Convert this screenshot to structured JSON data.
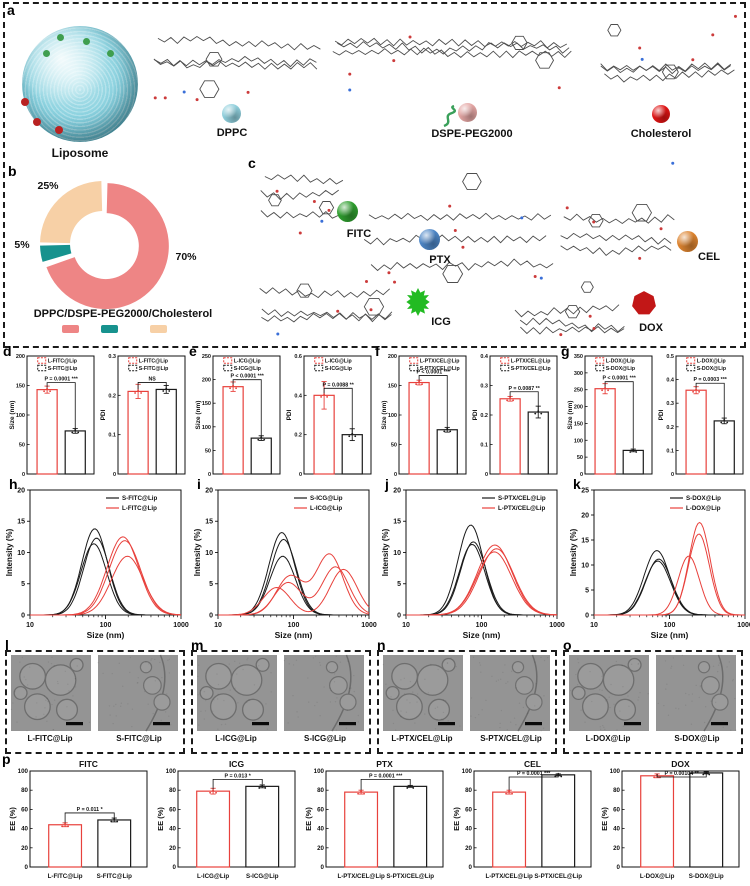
{
  "letters": {
    "a": "a",
    "b": "b",
    "c": "c",
    "d": "d",
    "e": "e",
    "f": "f",
    "g": "g",
    "h": "h",
    "i": "i",
    "j": "j",
    "k": "k",
    "l": "l",
    "m": "m",
    "n": "n",
    "o": "o",
    "p": "p"
  },
  "panel_a": {
    "liposome_label": "Liposome",
    "components": [
      {
        "name": "DPPC",
        "color": "#8fcfdc"
      },
      {
        "name": "DSPE-PEG2000",
        "color": "#e4a6a4"
      },
      {
        "name": "Cholesterol",
        "color": "#e01414"
      }
    ]
  },
  "panel_b": {
    "title": "DPPC/DSPE-PEG2000/Cholesterol"
  },
  "panel_c": {
    "drugs": [
      {
        "name": "FITC",
        "color": "#2f9e2f"
      },
      {
        "name": "PTX",
        "color": "#4d86c6"
      },
      {
        "name": "CEL",
        "color": "#dd8430"
      },
      {
        "name": "ICG",
        "color": "#22bb22"
      },
      {
        "name": "DOX",
        "color": "#c21717"
      }
    ]
  },
  "tem_panels": [
    {
      "letter": "l",
      "images": [
        {
          "label": "L-FITC@Lip"
        },
        {
          "label": "S-FITC@Lip"
        }
      ]
    },
    {
      "letter": "m",
      "images": [
        {
          "label": "L-ICG@Lip"
        },
        {
          "label": "S-ICG@Lip"
        }
      ]
    },
    {
      "letter": "n",
      "images": [
        {
          "label": "L-PTX/CEL@Lip"
        },
        {
          "label": "S-PTX/CEL@Lip"
        }
      ]
    },
    {
      "letter": "o",
      "images": [
        {
          "label": "L-DOX@Lip"
        },
        {
          "label": "S-DOX@Lip"
        }
      ]
    }
  ],
  "chart_data": [
    {
      "id": "b_donut",
      "type": "pie",
      "title": "DPPC/DSPE-PEG2000/Cholesterol",
      "values": [
        70,
        5,
        25
      ],
      "labels": [
        "70%",
        "5%",
        "25%"
      ],
      "colors": [
        "#ee8585",
        "#17928e",
        "#f7d0a6"
      ],
      "label_xy": [
        [
          178,
          88
        ],
        [
          14,
          76
        ],
        [
          40,
          17
        ]
      ]
    },
    {
      "id": "d_size",
      "type": "bar",
      "ylabel": "Size (nm)",
      "ylim": [
        0,
        200
      ],
      "yticks": [
        0,
        50,
        100,
        150,
        200
      ],
      "categories": [
        "L-FITC@Lip",
        "S-FITC@Lip"
      ],
      "values": [
        143,
        73
      ],
      "errors": [
        6,
        4
      ],
      "colors": [
        "#e8413c",
        "#1a1a1a"
      ],
      "legend": true,
      "annotation": "P = 0.0001 ***"
    },
    {
      "id": "d_pdi",
      "type": "bar",
      "ylabel": "PDI",
      "ylim": [
        0,
        0.3
      ],
      "yticks": [
        0,
        0.1,
        0.2,
        0.3
      ],
      "categories": [
        "L-FITC@Lip",
        "S-FITC@Lip"
      ],
      "values": [
        0.21,
        0.215
      ],
      "errors": [
        0.018,
        0.01
      ],
      "colors": [
        "#e8413c",
        "#1a1a1a"
      ],
      "legend": true,
      "annotation": "NS"
    },
    {
      "id": "e_size",
      "type": "bar",
      "ylabel": "Size (nm)",
      "ylim": [
        0,
        250
      ],
      "yticks": [
        0,
        50,
        100,
        150,
        200,
        250
      ],
      "categories": [
        "L-ICG@Lip",
        "S-ICG@Lip"
      ],
      "values": [
        185,
        76
      ],
      "errors": [
        10,
        5
      ],
      "colors": [
        "#e8413c",
        "#1a1a1a"
      ],
      "legend": true,
      "annotation": "P < 0.0001 ***"
    },
    {
      "id": "e_pdi",
      "type": "bar",
      "ylabel": "PDI",
      "ylim": [
        0,
        0.6
      ],
      "yticks": [
        0,
        0.2,
        0.4,
        0.6
      ],
      "categories": [
        "L-ICG@Lip",
        "S-ICG@Lip"
      ],
      "values": [
        0.4,
        0.2
      ],
      "errors": [
        0.07,
        0.03
      ],
      "colors": [
        "#e8413c",
        "#1a1a1a"
      ],
      "legend": true,
      "annotation": "P = 0.0088 **"
    },
    {
      "id": "f_size",
      "type": "bar",
      "ylabel": "Size (nm)",
      "ylim": [
        0,
        200
      ],
      "yticks": [
        0,
        50,
        100,
        150,
        200
      ],
      "categories": [
        "L-PTX/CEL@Lip",
        "S-PTX/CEL@Lip"
      ],
      "values": [
        155,
        75
      ],
      "errors": [
        4,
        4
      ],
      "colors": [
        "#e8413c",
        "#1a1a1a"
      ],
      "legend": true,
      "annotation": "P < 0.0001 ***"
    },
    {
      "id": "f_pdi",
      "type": "bar",
      "ylabel": "PDI",
      "ylim": [
        0,
        0.4
      ],
      "yticks": [
        0,
        0.1,
        0.2,
        0.3,
        0.4
      ],
      "categories": [
        "L-PTX/CEL@Lip",
        "S-PTX/CEL@Lip"
      ],
      "values": [
        0.255,
        0.21
      ],
      "errors": [
        0.008,
        0.02
      ],
      "colors": [
        "#e8413c",
        "#1a1a1a"
      ],
      "legend": true,
      "annotation": "P = 0.0087 **"
    },
    {
      "id": "g_size",
      "type": "bar",
      "ylabel": "Size (nm)",
      "ylim": [
        0,
        350
      ],
      "yticks": [
        0,
        50,
        100,
        150,
        200,
        250,
        300,
        350
      ],
      "categories": [
        "L-DOX@Lip",
        "S-DOX@Lip"
      ],
      "values": [
        253,
        70
      ],
      "errors": [
        15,
        4
      ],
      "colors": [
        "#e8413c",
        "#1a1a1a"
      ],
      "legend": true,
      "annotation": "P < 0.0001 ***"
    },
    {
      "id": "g_pdi",
      "type": "bar",
      "ylabel": "PDI",
      "ylim": [
        0,
        0.5
      ],
      "yticks": [
        0,
        0.1,
        0.2,
        0.3,
        0.4,
        0.5
      ],
      "categories": [
        "L-DOX@Lip",
        "S-DOX@Lip"
      ],
      "values": [
        0.355,
        0.225
      ],
      "errors": [
        0.015,
        0.012
      ],
      "colors": [
        "#e8413c",
        "#1a1a1a"
      ],
      "legend": true,
      "annotation": "P = 0.0003 ***"
    },
    {
      "id": "h_dls",
      "type": "line",
      "xlabel": "Size (nm)",
      "ylabel": "Intensity (%)",
      "xlim": [
        10,
        1000
      ],
      "ylim": [
        0,
        20
      ],
      "yticks": [
        0,
        5,
        10,
        15,
        20
      ],
      "series": [
        {
          "name": "S-FITC@Lip",
          "color": "#1a1a1a",
          "width": 0.17,
          "curves": [
            [
              [
                72,
                13.8
              ]
            ],
            [
              [
                76,
                12.3
              ]
            ],
            [
              [
                70,
                11.4
              ]
            ]
          ]
        },
        {
          "name": "L-FITC@Lip",
          "color": "#e8413c",
          "width": 0.21,
          "curves": [
            [
              [
                170,
                12.5
              ]
            ],
            [
              [
                180,
                11.9
              ]
            ],
            [
              [
                195,
                9.4
              ]
            ]
          ]
        }
      ]
    },
    {
      "id": "i_dls",
      "type": "line",
      "xlabel": "Size (nm)",
      "ylabel": "Intensity (%)",
      "xlim": [
        10,
        1000
      ],
      "ylim": [
        0,
        20
      ],
      "yticks": [
        0,
        5,
        10,
        15,
        20
      ],
      "series": [
        {
          "name": "S-ICG@Lip",
          "color": "#1a1a1a",
          "width": 0.17,
          "curves": [
            [
              [
                70,
                13.2
              ]
            ],
            [
              [
                74,
                12.1
              ]
            ],
            [
              [
                72,
                9.4
              ]
            ]
          ]
        },
        {
          "name": "L-ICG@Lip",
          "color": "#e8413c",
          "width": 0.18,
          "curves": [
            [
              [
                90,
                6.2
              ],
              [
                300,
                9.7
              ]
            ],
            [
              [
                85,
                5.2
              ],
              [
                360,
                7.7
              ]
            ],
            [
              [
                60,
                4.4
              ],
              [
                460,
                7.3
              ]
            ]
          ]
        }
      ]
    },
    {
      "id": "j_dls",
      "type": "line",
      "xlabel": "Size (nm)",
      "ylabel": "Intensity (%)",
      "xlim": [
        10,
        1000
      ],
      "ylim": [
        0,
        20
      ],
      "yticks": [
        0,
        5,
        10,
        15,
        20
      ],
      "series": [
        {
          "name": "S-PTX/CEL@Lip",
          "color": "#1a1a1a",
          "width": 0.17,
          "curves": [
            [
              [
                72,
                14.4
              ]
            ],
            [
              [
                78,
                11.7
              ]
            ],
            [
              [
                75,
                11.3
              ]
            ]
          ]
        },
        {
          "name": "L-PTX/CEL@Lip",
          "color": "#e8413c",
          "width": 0.23,
          "curves": [
            [
              [
                150,
                11.2
              ]
            ],
            [
              [
                158,
                10.6
              ]
            ],
            [
              [
                148,
                10.1
              ]
            ]
          ]
        }
      ]
    },
    {
      "id": "k_dls",
      "type": "line",
      "xlabel": "Size (nm)",
      "ylabel": "Intensity (%)",
      "xlim": [
        10,
        1000
      ],
      "ylim": [
        0,
        25
      ],
      "yticks": [
        0,
        5,
        10,
        15,
        20,
        25
      ],
      "series": [
        {
          "name": "S-DOX@Lip",
          "color": "#1a1a1a",
          "width": 0.17,
          "curves": [
            [
              [
                68,
                12.9
              ]
            ],
            [
              [
                72,
                11.2
              ]
            ],
            [
              [
                70,
                10.8
              ]
            ]
          ]
        },
        {
          "name": "L-DOX@Lip",
          "color": "#e8413c",
          "width": 0.14,
          "curves": [
            [
              [
                250,
                18.5
              ]
            ],
            [
              [
                245,
                16.2
              ]
            ],
            [
              [
                180,
                11.8
              ]
            ]
          ]
        }
      ]
    },
    {
      "id": "p_fitc",
      "type": "bar",
      "title": "FITC",
      "ylabel": "EE (%)",
      "ylim": [
        0,
        100
      ],
      "yticks": [
        0,
        20,
        40,
        60,
        80,
        100
      ],
      "categories": [
        "L-FITC@Lip",
        "S-FITC@Lip"
      ],
      "values": [
        44,
        49
      ],
      "errors": [
        2,
        2
      ],
      "colors": [
        "#e8413c",
        "#1a1a1a"
      ],
      "show_xlabels": true,
      "annotation": "P = 0.011 *"
    },
    {
      "id": "p_icg",
      "type": "bar",
      "title": "ICG",
      "ylabel": "EE (%)",
      "ylim": [
        0,
        100
      ],
      "yticks": [
        0,
        20,
        40,
        60,
        80,
        100
      ],
      "categories": [
        "L-ICG@Lip",
        "S-ICG@Lip"
      ],
      "values": [
        79,
        84
      ],
      "errors": [
        3,
        1.5
      ],
      "colors": [
        "#e8413c",
        "#1a1a1a"
      ],
      "show_xlabels": true,
      "annotation": "P = 0.013 *"
    },
    {
      "id": "p_ptx",
      "type": "bar",
      "title": "PTX",
      "ylabel": "EE (%)",
      "ylim": [
        0,
        100
      ],
      "yticks": [
        0,
        20,
        40,
        60,
        80,
        100
      ],
      "categories": [
        "L-PTX/CEL@Lip",
        "S-PTX/CEL@Lip"
      ],
      "values": [
        78,
        84
      ],
      "errors": [
        2,
        1
      ],
      "colors": [
        "#e8413c",
        "#1a1a1a"
      ],
      "show_xlabels": true,
      "annotation": "P = 0.0001 ***"
    },
    {
      "id": "p_cel",
      "type": "bar",
      "title": "CEL",
      "ylabel": "EE (%)",
      "ylim": [
        0,
        100
      ],
      "yticks": [
        0,
        20,
        40,
        60,
        80,
        100
      ],
      "categories": [
        "L-PTX/CEL@Lip",
        "S-PTX/CEL@Lip"
      ],
      "values": [
        78,
        96
      ],
      "errors": [
        2,
        1
      ],
      "colors": [
        "#e8413c",
        "#1a1a1a"
      ],
      "show_xlabels": true,
      "annotation": "P = 0.0001 ***"
    },
    {
      "id": "p_dox",
      "type": "bar",
      "title": "DOX",
      "ylabel": "EE (%)",
      "ylim": [
        0,
        100
      ],
      "yticks": [
        0,
        20,
        40,
        60,
        80,
        100
      ],
      "categories": [
        "L-DOX@Lip",
        "S-DOX@Lip"
      ],
      "values": [
        95,
        98
      ],
      "errors": [
        2,
        1
      ],
      "colors": [
        "#e8413c",
        "#1a1a1a"
      ],
      "show_xlabels": true,
      "annotation": "P = 0.00104 **"
    }
  ]
}
